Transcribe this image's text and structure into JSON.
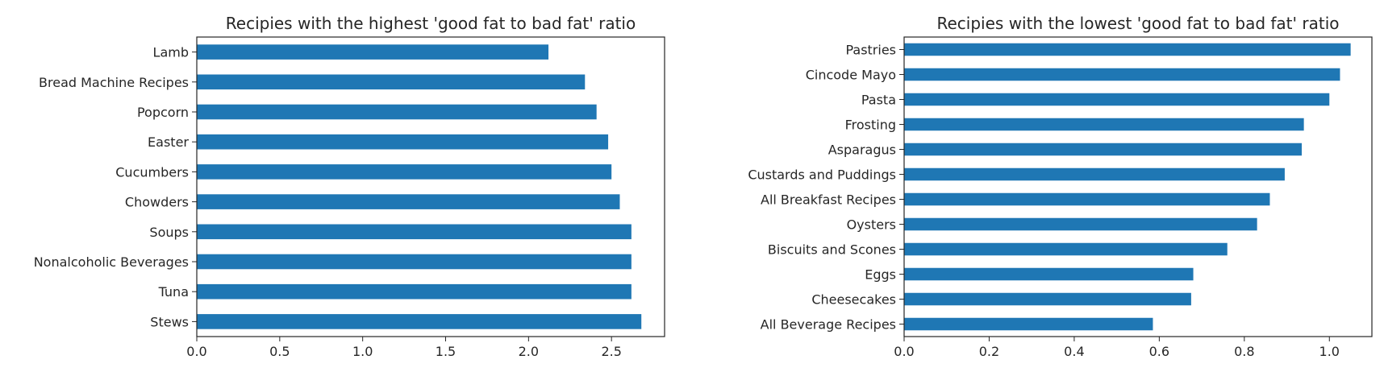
{
  "chart_data": [
    {
      "type": "bar",
      "orientation": "horizontal",
      "title": "Recipies with the highest 'good fat to bad fat' ratio",
      "xlabel": "",
      "ylabel": "",
      "categories": [
        "Lamb",
        "Bread Machine Recipes",
        "Popcorn",
        "Easter",
        "Cucumbers",
        "Chowders",
        "Soups",
        "Nonalcoholic Beverages",
        "Tuna",
        "Stews"
      ],
      "values": [
        2.12,
        2.34,
        2.41,
        2.48,
        2.5,
        2.55,
        2.62,
        2.62,
        2.62,
        2.68
      ],
      "xlim": [
        0,
        2.82
      ],
      "xticks": [
        "0.0",
        "0.5",
        "1.0",
        "1.5",
        "2.0",
        "2.5"
      ],
      "bar_color": "#1f77b4",
      "grid": false
    },
    {
      "type": "bar",
      "orientation": "horizontal",
      "title": "Recipies with the lowest 'good fat to bad fat' ratio",
      "xlabel": "",
      "ylabel": "",
      "categories": [
        "Pastries",
        "Cincode Mayo",
        "Pasta",
        "Frosting",
        "Asparagus",
        "Custards and Puddings",
        "All Breakfast Recipes",
        "Oysters",
        "Biscuits and Scones",
        "Eggs",
        "Cheesecakes",
        "All Beverage Recipes"
      ],
      "values": [
        1.05,
        1.025,
        1.0,
        0.94,
        0.935,
        0.895,
        0.86,
        0.83,
        0.76,
        0.68,
        0.675,
        0.585
      ],
      "xlim": [
        0,
        1.1
      ],
      "xticks": [
        "0.0",
        "0.2",
        "0.4",
        "0.6",
        "0.8",
        "1.0"
      ],
      "bar_color": "#1f77b4",
      "grid": false
    }
  ]
}
